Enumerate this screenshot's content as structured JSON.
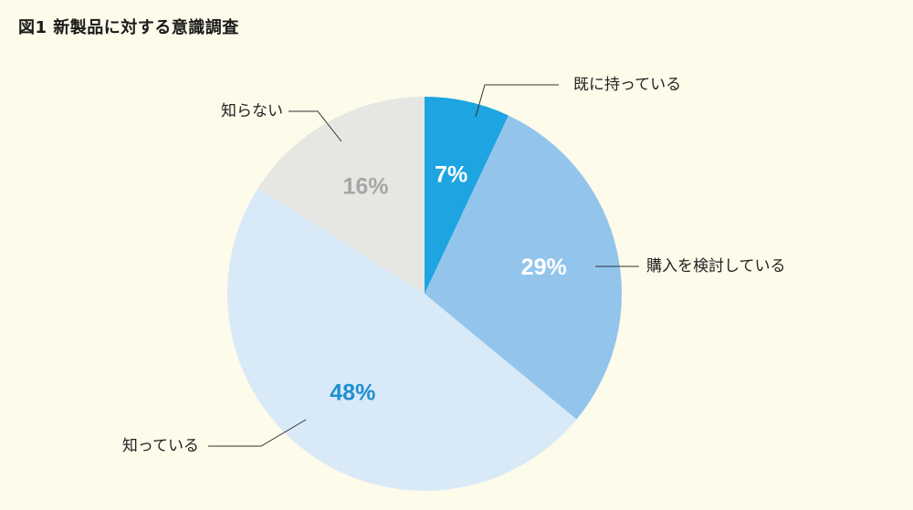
{
  "title": "図1 新製品に対する意識調査",
  "chart_data": {
    "type": "pie",
    "title": "図1 新製品に対する意識調査",
    "start_angle_deg": 0,
    "direction": "clockwise",
    "slices": [
      {
        "label": "既に持っている",
        "value": 7,
        "value_label": "7%",
        "color": "#1ea4e0",
        "value_color": "#ffffff"
      },
      {
        "label": "購入を検討している",
        "value": 29,
        "value_label": "29%",
        "color": "#93c5ec",
        "value_color": "#ffffff"
      },
      {
        "label": "知っている",
        "value": 48,
        "value_label": "48%",
        "color": "#d8e9f8",
        "value_color": "#1f8fd0"
      },
      {
        "label": "知らない",
        "value": 16,
        "value_label": "16%",
        "color": "#e6e6e3",
        "value_color": "#a6a6a6"
      }
    ]
  }
}
